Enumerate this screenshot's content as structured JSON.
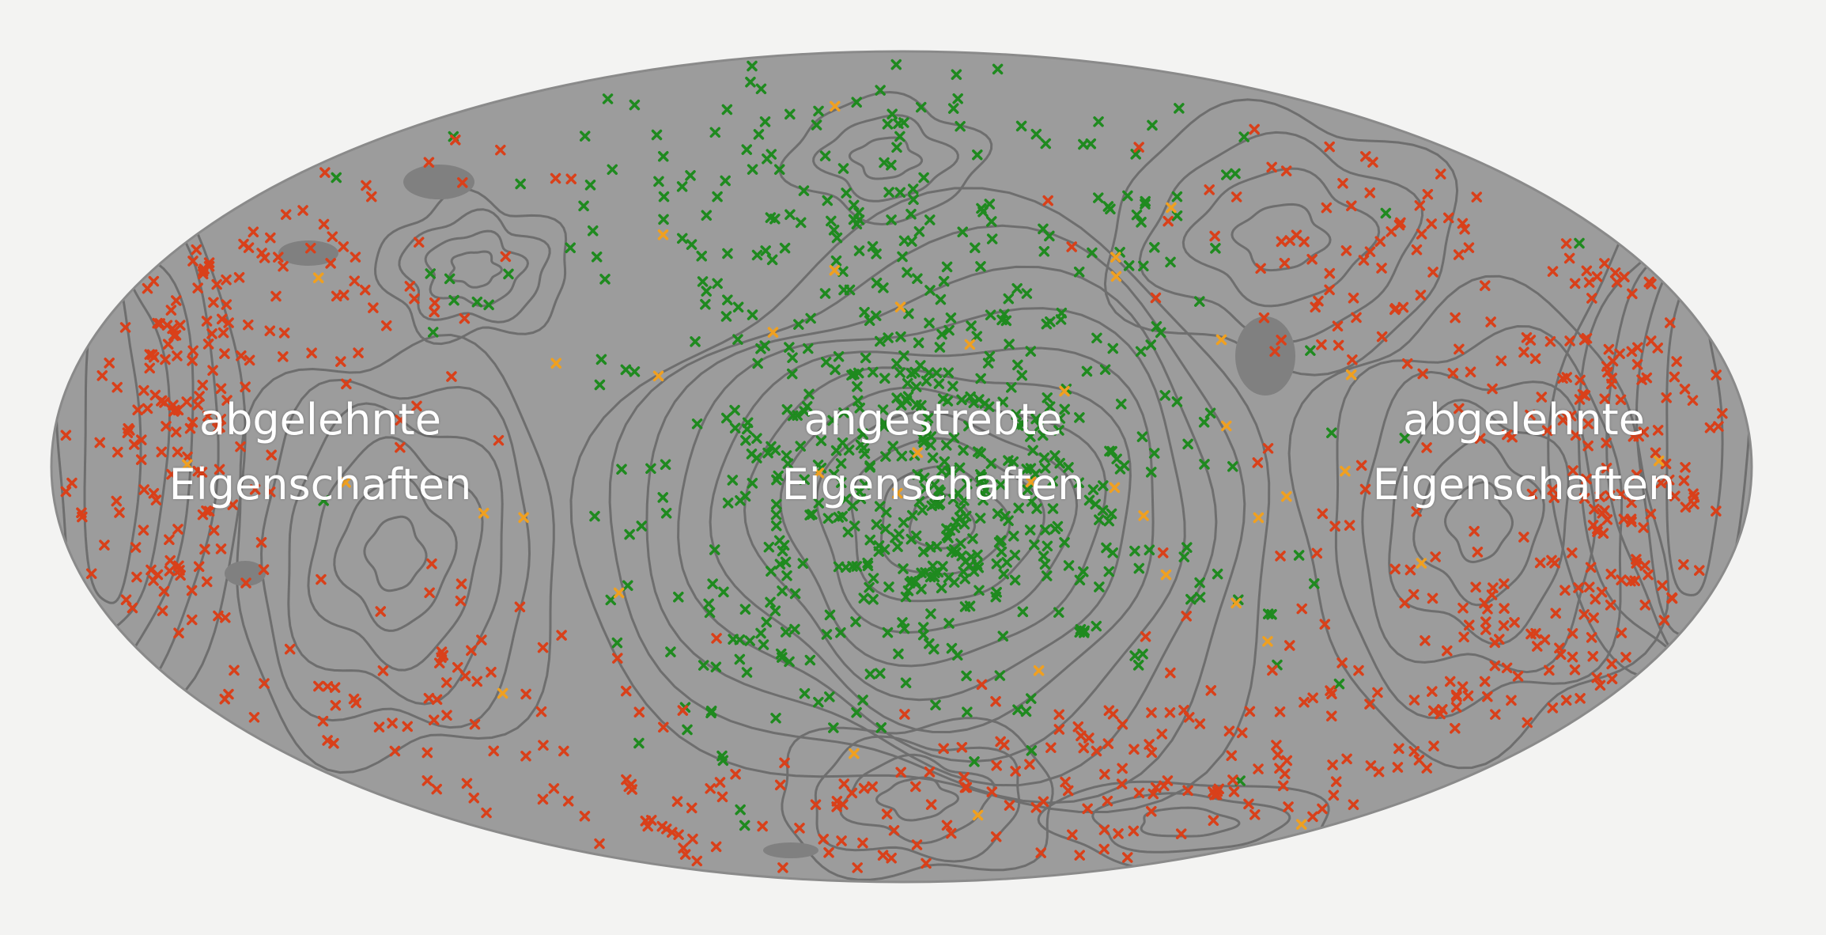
{
  "labels": {
    "left": {
      "line1": "abgelehnte",
      "line2": "Eigenschaften"
    },
    "center": {
      "line1": "angestrebte",
      "line2": "Eigenschaften"
    },
    "right": {
      "line1": "abgelehnte",
      "line2": "Eigenschaften"
    }
  },
  "colors": {
    "background": "#f3f3f2",
    "map_fill": "#9c9c9c",
    "contour": "#6e6e6e",
    "dark_patch": "#808080",
    "marker_green": "#1f8a1f",
    "marker_red": "#d9401a",
    "marker_orange": "#f0a020"
  },
  "markers": {
    "symbol": "x",
    "categories": [
      "green",
      "red",
      "orange"
    ]
  }
}
